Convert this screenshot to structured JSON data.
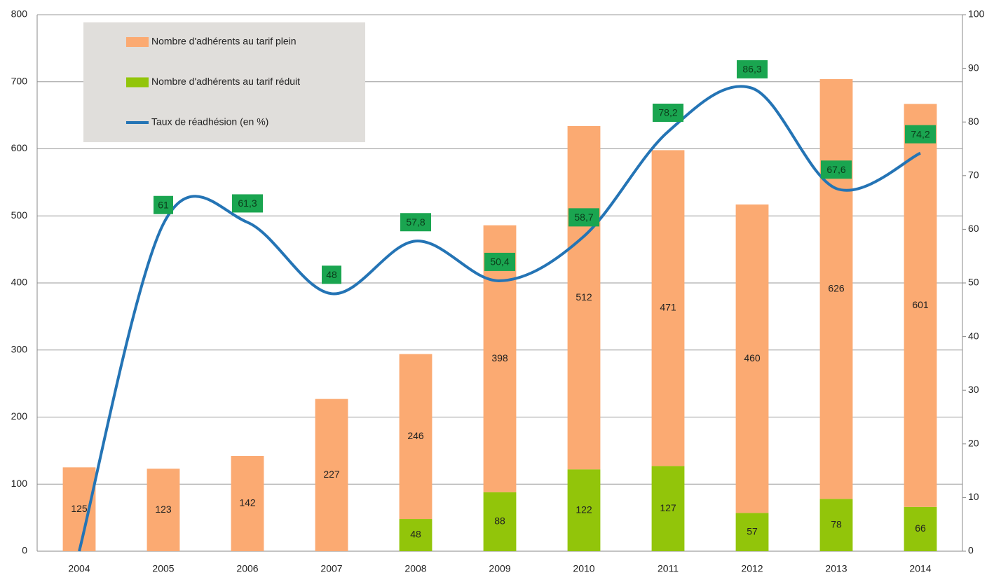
{
  "chart_data": {
    "type": "bar",
    "stacked": true,
    "categories": [
      "2004",
      "2005",
      "2006",
      "2007",
      "2008",
      "2009",
      "2010",
      "2011",
      "2012",
      "2013",
      "2014"
    ],
    "series": [
      {
        "name": "Nombre d'adhérents au tarif réduit",
        "type": "bar",
        "color": "#92c50a",
        "values": [
          null,
          null,
          null,
          null,
          48,
          88,
          122,
          127,
          57,
          78,
          66
        ]
      },
      {
        "name": "Nombre d'adhérents au tarif plein",
        "type": "bar",
        "color": "#fbaa72",
        "values": [
          125,
          123,
          142,
          227,
          246,
          398,
          512,
          471,
          460,
          626,
          601
        ]
      },
      {
        "name": "Taux de réadhésion (en %)",
        "type": "line",
        "axis": "y2",
        "color": "#2474b5",
        "values": [
          0,
          61,
          61.3,
          48,
          57.8,
          50.4,
          58.7,
          78.2,
          86.3,
          67.6,
          74.2
        ],
        "value_labels": [
          null,
          "61",
          "61,3",
          "48",
          "57,8",
          "50,4",
          "58,7",
          "78,2",
          "86,3",
          "67,6",
          "74,2"
        ]
      }
    ],
    "legend_order": [
      1,
      0,
      2
    ],
    "ylim": [
      0,
      800
    ],
    "yticks": [
      0,
      100,
      200,
      300,
      400,
      500,
      600,
      700,
      800
    ],
    "y2lim": [
      0,
      100
    ],
    "y2ticks": [
      0,
      10,
      20,
      30,
      40,
      50,
      60,
      70,
      80,
      90,
      100
    ],
    "grid": true,
    "legend": "upper left"
  }
}
